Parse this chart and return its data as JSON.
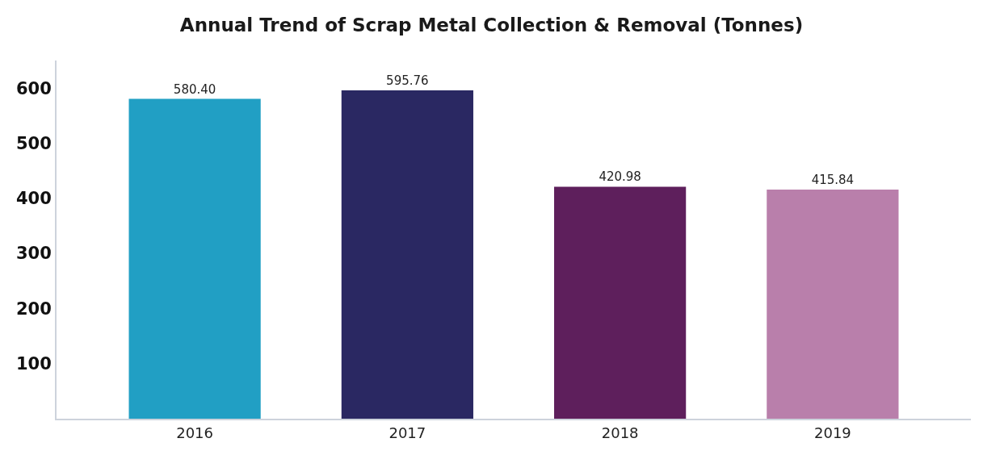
{
  "chart_data": {
    "type": "bar",
    "title": "Annual Trend of Scrap Metal Collection & Removal (Tonnes)",
    "categories": [
      "2016",
      "2017",
      "2018",
      "2019"
    ],
    "values": [
      580.4,
      595.76,
      420.98,
      415.84
    ],
    "value_labels": [
      "580.40",
      "595.76",
      "420.98",
      "415.84"
    ],
    "colors": [
      "#219fc4",
      "#2a2862",
      "#5e1f5c",
      "#b97fab"
    ],
    "ylim": [
      0,
      650
    ],
    "yticks": [
      100,
      200,
      300,
      400,
      500,
      600
    ]
  }
}
